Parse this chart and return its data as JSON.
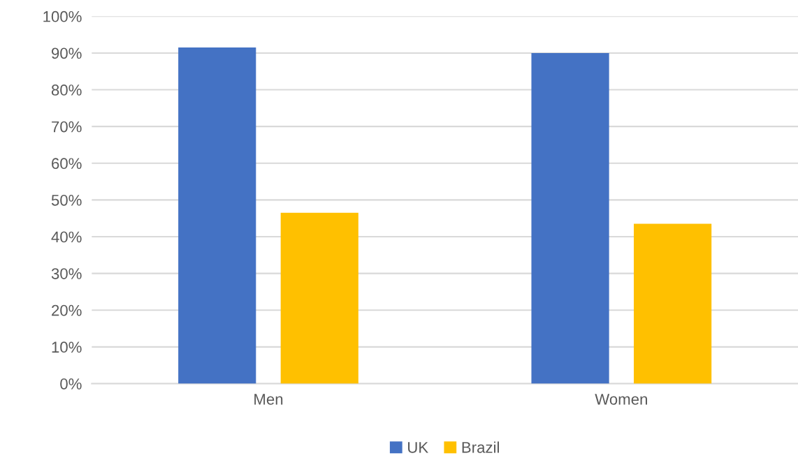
{
  "chart_data": {
    "type": "bar",
    "categories": [
      "Men",
      "Women"
    ],
    "series": [
      {
        "name": "UK",
        "color": "#4472c4",
        "values": [
          91.5,
          90
        ]
      },
      {
        "name": "Brazil",
        "color": "#ffc000",
        "values": [
          46.5,
          43.5
        ]
      }
    ],
    "ylim": [
      0,
      100
    ],
    "yticks": [
      {
        "value": 0,
        "label": "0%"
      },
      {
        "value": 10,
        "label": "10%"
      },
      {
        "value": 20,
        "label": "20%"
      },
      {
        "value": 30,
        "label": "30%"
      },
      {
        "value": 40,
        "label": "40%"
      },
      {
        "value": 50,
        "label": "50%"
      },
      {
        "value": 60,
        "label": "60%"
      },
      {
        "value": 70,
        "label": "70%"
      },
      {
        "value": 80,
        "label": "80%"
      },
      {
        "value": 90,
        "label": "90%"
      },
      {
        "value": 100,
        "label": "100%"
      }
    ],
    "grid": "y",
    "legend": "bottom"
  }
}
